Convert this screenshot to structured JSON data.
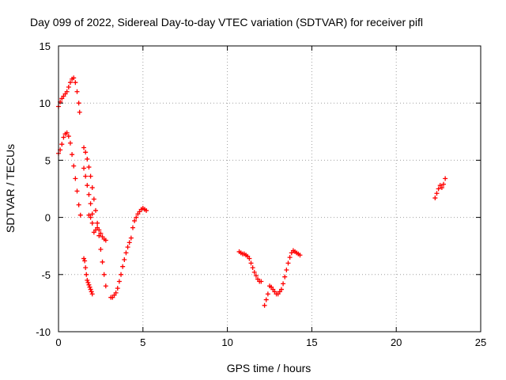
{
  "chart_data": {
    "type": "scatter",
    "title": "Day 099 of 2022, Sidereal Day-to-day VTEC variation (SDTVAR) for receiver pifl",
    "xlabel": "GPS time / hours",
    "ylabel": "SDTVAR / TECUs",
    "xlim": [
      0,
      25
    ],
    "ylim": [
      -10,
      15
    ],
    "xticks": [
      "0",
      "5",
      "10",
      "15",
      "20",
      "25"
    ],
    "yticks": [
      "-10",
      "-5",
      "0",
      "5",
      "10",
      "15"
    ],
    "grid": true,
    "marker": "+",
    "color": "#ff0000",
    "series": [
      {
        "x": [
          0.0,
          0.1,
          0.2,
          0.3,
          0.4,
          0.5,
          0.6,
          0.7,
          0.8,
          0.9,
          1.0,
          1.1,
          1.2,
          1.25
        ],
        "y": [
          9.7,
          10.1,
          10.4,
          10.6,
          10.8,
          11.0,
          11.4,
          11.8,
          12.1,
          12.2,
          11.8,
          11.0,
          10.0,
          9.2
        ]
      },
      {
        "x": [
          0.0,
          0.1,
          0.2,
          0.3,
          0.4,
          0.5,
          0.6,
          0.7,
          0.8,
          0.9,
          1.0,
          1.1,
          1.2,
          1.3
        ],
        "y": [
          5.6,
          5.9,
          6.4,
          7.0,
          7.3,
          7.4,
          7.1,
          6.5,
          5.5,
          4.5,
          3.4,
          2.3,
          1.1,
          0.2
        ]
      },
      {
        "x": [
          1.5,
          1.6,
          1.7,
          1.8,
          1.9,
          2.0,
          2.1,
          2.2,
          2.3,
          2.4,
          2.5,
          2.6,
          2.7,
          2.8
        ],
        "y": [
          6.1,
          5.7,
          5.1,
          4.4,
          3.6,
          2.6,
          1.6,
          0.6,
          -0.5,
          -1.6,
          -2.8,
          -3.9,
          -5.0,
          -6.0
        ]
      },
      {
        "x": [
          1.5,
          1.6,
          1.7,
          1.8,
          1.9,
          2.0
        ],
        "y": [
          4.3,
          3.6,
          2.8,
          2.0,
          1.2,
          0.3
        ]
      },
      {
        "x": [
          1.8,
          1.9,
          2.0,
          2.1,
          2.2,
          2.3,
          2.4,
          2.5,
          2.6,
          2.7,
          2.8
        ],
        "y": [
          0.2,
          0.0,
          -0.5,
          -1.3,
          -1.1,
          -0.9,
          -1.1,
          -1.4,
          -1.7,
          -1.9,
          -2.0
        ]
      },
      {
        "x": [
          1.5,
          1.55,
          1.6,
          1.65,
          1.7,
          1.75,
          1.8,
          1.85,
          1.9,
          1.95,
          2.0
        ],
        "y": [
          -3.6,
          -3.8,
          -4.4,
          -5.0,
          -5.5,
          -5.7,
          -5.9,
          -6.1,
          -6.3,
          -6.5,
          -6.7
        ]
      },
      {
        "x": [
          3.1,
          3.2,
          3.3,
          3.4,
          3.5,
          3.6,
          3.7,
          3.8,
          3.9,
          4.0,
          4.1,
          4.2,
          4.3
        ],
        "y": [
          -7.0,
          -7.0,
          -6.8,
          -6.6,
          -6.2,
          -5.6,
          -5.0,
          -4.3,
          -3.7,
          -3.1,
          -2.6,
          -2.2,
          -1.8
        ]
      },
      {
        "x": [
          4.4,
          4.5,
          4.6,
          4.7,
          4.8,
          4.9,
          5.0,
          5.1,
          5.2
        ],
        "y": [
          -0.9,
          -0.3,
          0.0,
          0.3,
          0.5,
          0.7,
          0.8,
          0.7,
          0.6
        ]
      },
      {
        "x": [
          10.7,
          10.8,
          10.9,
          11.0,
          11.1,
          11.2,
          11.3,
          11.4,
          11.5,
          11.6,
          11.7,
          11.8,
          11.9,
          12.0
        ],
        "y": [
          -3.0,
          -3.1,
          -3.2,
          -3.2,
          -3.3,
          -3.4,
          -3.6,
          -4.0,
          -4.4,
          -4.8,
          -5.1,
          -5.4,
          -5.6,
          -5.6
        ]
      },
      {
        "x": [
          12.2,
          12.3,
          12.4
        ],
        "y": [
          -7.7,
          -7.2,
          -6.7
        ]
      },
      {
        "x": [
          12.5,
          12.6,
          12.7,
          12.8,
          12.9,
          13.0,
          13.1,
          13.2,
          13.3,
          13.4,
          13.5,
          13.6,
          13.7,
          13.8,
          13.9,
          14.0,
          14.1,
          14.2,
          14.3
        ],
        "y": [
          -6.0,
          -6.1,
          -6.3,
          -6.5,
          -6.7,
          -6.7,
          -6.5,
          -6.3,
          -5.8,
          -5.2,
          -4.6,
          -4.0,
          -3.5,
          -3.1,
          -2.9,
          -3.0,
          -3.1,
          -3.2,
          -3.3
        ]
      },
      {
        "x": [
          22.3,
          22.4,
          22.5,
          22.6,
          22.7,
          22.8,
          22.9
        ],
        "y": [
          1.7,
          2.1,
          2.5,
          2.8,
          2.6,
          2.9,
          3.4
        ]
      }
    ]
  }
}
